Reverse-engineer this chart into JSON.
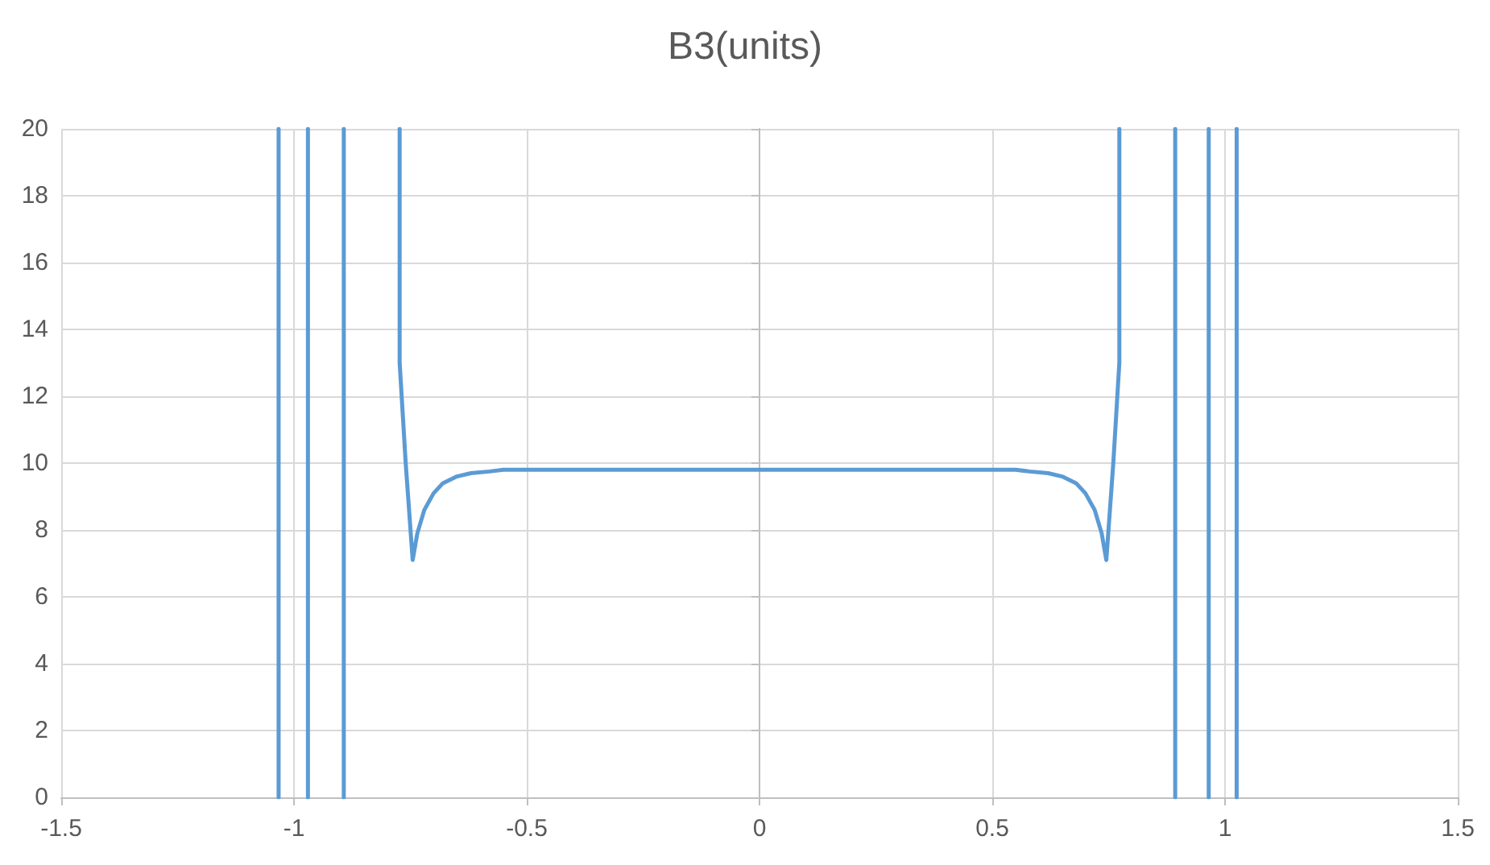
{
  "chart_data": {
    "type": "line",
    "title": "B3(units)",
    "x": [
      -1.033,
      -1.033,
      null,
      -0.97,
      -0.97,
      null,
      -0.893,
      -0.893,
      null,
      -0.773,
      -0.773,
      -0.76,
      -0.745,
      -0.735,
      -0.72,
      -0.7,
      -0.68,
      -0.65,
      -0.62,
      -0.58,
      -0.55,
      -0.5,
      0,
      0.5,
      0.55,
      0.58,
      0.62,
      0.65,
      0.68,
      0.7,
      0.72,
      0.735,
      0.745,
      0.76,
      0.773,
      0.773,
      null,
      0.893,
      0.893,
      null,
      0.965,
      0.965,
      null,
      1.025,
      1.025
    ],
    "series": [
      {
        "color": "#5b9bd5",
        "values": [
          0,
          20,
          null,
          20,
          0,
          null,
          0,
          20,
          null,
          20,
          13,
          10,
          7.1,
          7.9,
          8.6,
          9.1,
          9.4,
          9.6,
          9.7,
          9.75,
          9.8,
          9.8,
          9.8,
          9.8,
          9.8,
          9.75,
          9.7,
          9.6,
          9.4,
          9.1,
          8.6,
          7.9,
          7.1,
          10,
          13,
          20,
          null,
          20,
          0,
          null,
          0,
          20,
          null,
          20,
          0
        ]
      }
    ],
    "xlim": [
      -1.5,
      1.5
    ],
    "xticks": [
      -1.5,
      -1,
      -0.5,
      0,
      0.5,
      1,
      1.5
    ],
    "ylim": [
      0,
      20
    ],
    "yticks": [
      0,
      2,
      4,
      6,
      8,
      10,
      12,
      14,
      16,
      18,
      20
    ],
    "grid": true,
    "marker": "none",
    "line_style": "solid"
  }
}
